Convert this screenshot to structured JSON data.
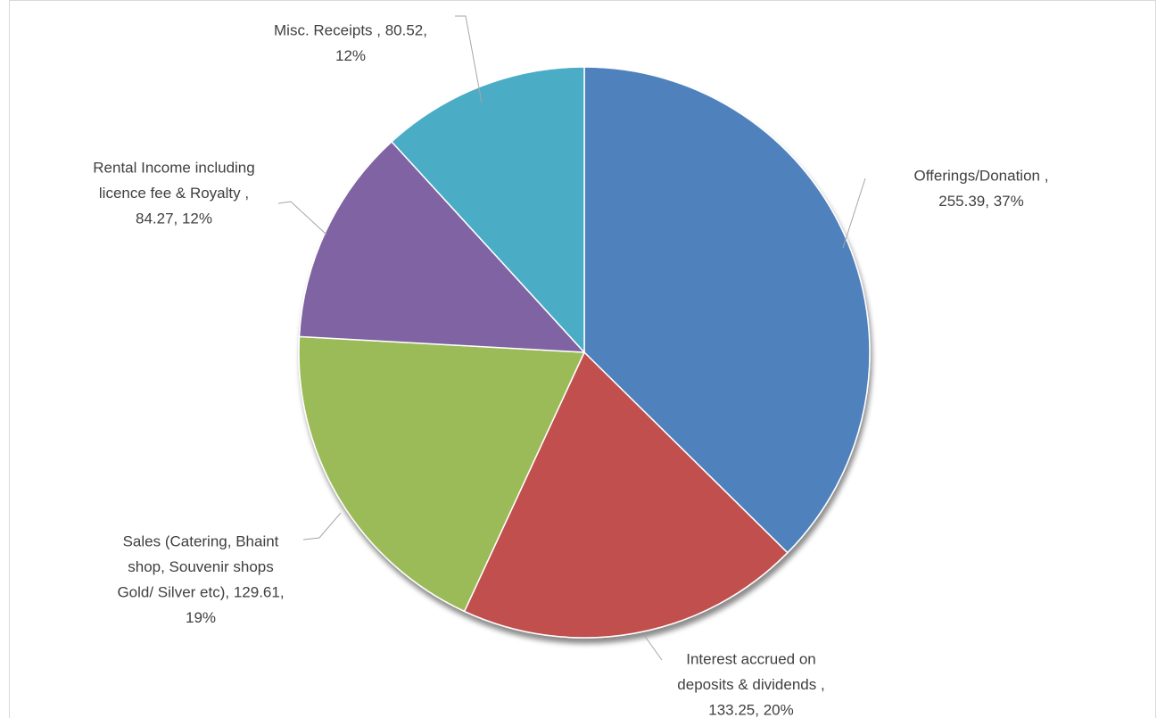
{
  "chart_data": {
    "type": "pie",
    "values": [
      255.39,
      133.25,
      129.61,
      84.27,
      80.52
    ],
    "value_labels": [
      [
        "Offerings/Donation ,",
        "255.39, 37%"
      ],
      [
        "Interest accrued on",
        "deposits & dividends  ,",
        "133.25, 20%"
      ],
      [
        "Sales (Catering, Bhaint",
        "shop, Souvenir shops",
        "Gold/ Silver etc), 129.61,",
        "19%"
      ],
      [
        "Rental Income including",
        "licence fee & Royalty ,",
        "84.27, 12%"
      ],
      [
        "Misc. Receipts  , 80.52,",
        "12%"
      ]
    ],
    "colors": [
      "#4f81bd",
      "#c0504d",
      "#9bbb59",
      "#8064a2",
      "#4bacc6"
    ]
  }
}
